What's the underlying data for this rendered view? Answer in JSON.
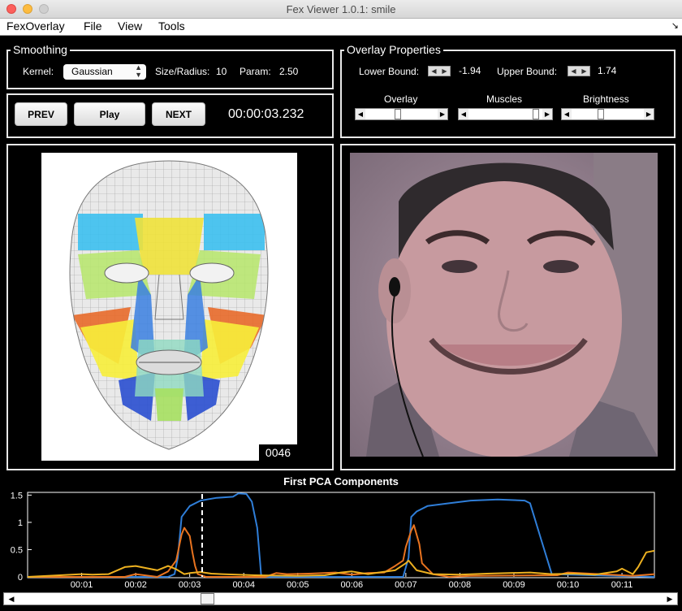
{
  "window": {
    "title": "Fex Viewer 1.0.1: smile"
  },
  "menu": {
    "items": [
      "FexOverlay",
      "File",
      "View",
      "Tools"
    ]
  },
  "smoothing": {
    "legend": "Smoothing",
    "kernel_label": "Kernel:",
    "kernel_value": "Gaussian",
    "size_label": "Size/Radius:",
    "size_value": "10",
    "param_label": "Param:",
    "param_value": "2.50"
  },
  "playback": {
    "prev": "PREV",
    "play": "Play",
    "next": "NEXT",
    "timecode": "00:00:03.232"
  },
  "overlay": {
    "legend": "Overlay Properties",
    "lower_label": "Lower Bound:",
    "lower_value": "-1.94",
    "upper_label": "Upper Bound:",
    "upper_value": "1.74",
    "sliders": [
      {
        "label": "Overlay",
        "level": 0.45
      },
      {
        "label": "Muscles",
        "level": 0.95
      },
      {
        "label": "Brightness",
        "level": 0.4
      }
    ]
  },
  "face_model": {
    "frame": "0046"
  },
  "timeline": {
    "position": 0.29
  },
  "chart_data": {
    "type": "line",
    "title": "First PCA Components",
    "xlabel": "",
    "ylabel": "",
    "xlim": [
      0,
      11.6
    ],
    "ylim": [
      0,
      1.55
    ],
    "x_ticks": [
      "00:01",
      "00:02",
      "00:03",
      "00:04",
      "00:05",
      "00:06",
      "00:07",
      "00:08",
      "00:09",
      "00:10",
      "00:11"
    ],
    "y_ticks": [
      "0",
      "0.5",
      "1",
      "1.5"
    ],
    "current_time": 3.23,
    "series": [
      {
        "color": "#2f7ed8",
        "x": [
          0,
          2.6,
          2.72,
          2.78,
          2.85,
          3.0,
          3.2,
          3.5,
          3.8,
          3.9,
          4.05,
          4.15,
          4.25,
          4.3,
          4.32,
          4.34,
          6.95,
          7.05,
          7.1,
          7.2,
          7.4,
          7.8,
          8.2,
          8.7,
          9.2,
          9.3,
          9.5,
          9.7,
          11.6
        ],
        "y": [
          0,
          0,
          0.05,
          0.35,
          1.1,
          1.3,
          1.4,
          1.45,
          1.47,
          1.53,
          1.52,
          1.38,
          0.9,
          0.3,
          0.05,
          0,
          0,
          0.35,
          1.1,
          1.2,
          1.3,
          1.35,
          1.4,
          1.42,
          1.4,
          1.35,
          0.7,
          0.05,
          0
        ]
      },
      {
        "color": "#e8731f",
        "x": [
          0,
          1.8,
          2.0,
          2.4,
          2.6,
          2.75,
          2.85,
          2.9,
          3.0,
          3.05,
          3.1,
          3.15,
          3.3,
          4.4,
          4.6,
          4.8,
          5.2,
          5.7,
          6.0,
          6.3,
          6.6,
          6.8,
          6.95,
          7.0,
          7.1,
          7.15,
          7.25,
          7.3,
          7.5,
          7.8,
          8.2,
          9.8,
          10.0,
          11.2,
          11.6
        ],
        "y": [
          0,
          0,
          0.05,
          0.0,
          0.1,
          0.3,
          0.78,
          0.9,
          0.75,
          0.45,
          0.2,
          0.05,
          0,
          0,
          0.07,
          0.05,
          0.06,
          0.08,
          0.04,
          0.07,
          0.08,
          0.2,
          0.3,
          0.55,
          0.85,
          0.95,
          0.6,
          0.25,
          0.05,
          0,
          0.02,
          0.03,
          0.08,
          0.02,
          0.05
        ]
      },
      {
        "color": "#edb120",
        "x": [
          0,
          0.6,
          1.0,
          1.2,
          1.5,
          1.8,
          2.0,
          2.4,
          2.6,
          2.75,
          2.9,
          3.0,
          3.2,
          3.4,
          3.6,
          4.2,
          5.0,
          5.5,
          5.8,
          6.0,
          6.3,
          6.5,
          6.8,
          7.0,
          7.05,
          7.2,
          7.5,
          8.0,
          8.5,
          9.3,
          9.7,
          10.1,
          10.5,
          10.9,
          11.0,
          11.2,
          11.3,
          11.45,
          11.6
        ],
        "y": [
          0,
          0.03,
          0.05,
          0.04,
          0.05,
          0.18,
          0.2,
          0.12,
          0.2,
          0.14,
          0.05,
          0.07,
          0.09,
          0.06,
          0.05,
          0.03,
          0.02,
          0.03,
          0.08,
          0.1,
          0.05,
          0.08,
          0.12,
          0.25,
          0.3,
          0.12,
          0.05,
          0.04,
          0.06,
          0.08,
          0.05,
          0.06,
          0.04,
          0.1,
          0.15,
          0.05,
          0.18,
          0.45,
          0.48
        ]
      }
    ]
  }
}
